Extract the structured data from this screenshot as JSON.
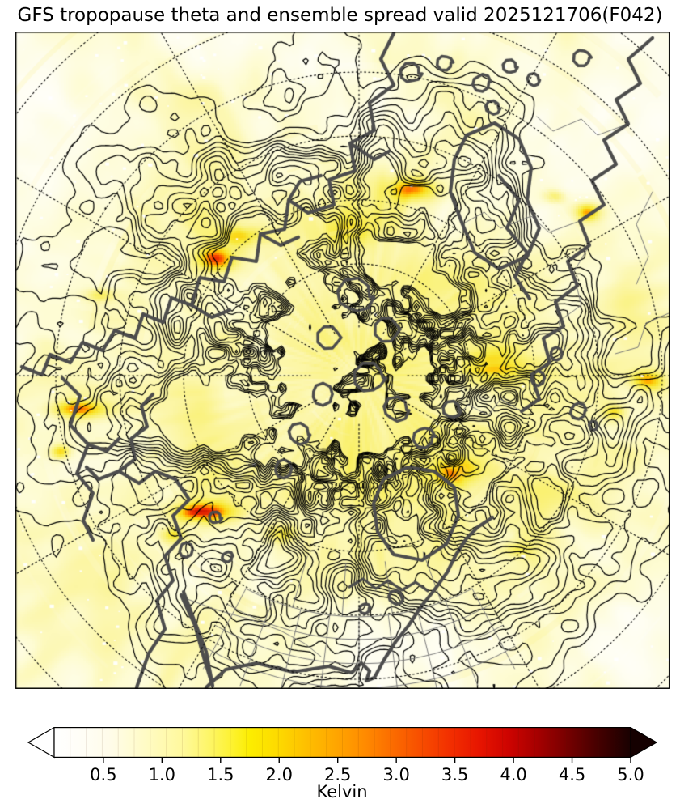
{
  "title": "GFS tropopause theta and ensemble spread valid 2025121706(F042)",
  "chart_data": {
    "type": "heatmap",
    "title": "GFS tropopause theta and ensemble spread valid 2025121706(F042)",
    "description": "North polar stereographic map of tropopause potential temperature ensemble spread (filled, white-yellow-orange-red-black) with black tropopause theta contour lines, dark gray coastlines, thin gray state and country borders, and dotted latitude/longitude graticule.",
    "projection": "north polar stereographic",
    "grid": "dotted latitude circles and meridians every 30 degrees",
    "colorbar": {
      "label": "Kelvin",
      "orientation": "horizontal",
      "extend": "both",
      "tick_labels": [
        "0.5",
        "1.0",
        "1.5",
        "2.0",
        "2.5",
        "3.0",
        "3.5",
        "4.0",
        "4.5",
        "5.0"
      ],
      "tick_values": [
        0.5,
        1.0,
        1.5,
        2.0,
        2.5,
        3.0,
        3.5,
        4.0,
        4.5,
        5.0
      ],
      "value_range": [
        0.08,
        5.0
      ],
      "left_arrow_color": "#ffffff",
      "right_arrow_color": "#150101",
      "gradient_stops": [
        [
          0.0,
          "#ffffff"
        ],
        [
          0.05,
          "#fffef6"
        ],
        [
          0.1,
          "#fffce8"
        ],
        [
          0.16,
          "#fffbc4"
        ],
        [
          0.22,
          "#fff99e"
        ],
        [
          0.27,
          "#fdf566"
        ],
        [
          0.31,
          "#fdf22e"
        ],
        [
          0.34,
          "#fced00"
        ],
        [
          0.39,
          "#fdd900"
        ],
        [
          0.44,
          "#febe00"
        ],
        [
          0.49,
          "#ffa500"
        ],
        [
          0.54,
          "#ff8a00"
        ],
        [
          0.59,
          "#fb6a00"
        ],
        [
          0.64,
          "#f74b00"
        ],
        [
          0.69,
          "#f22d00"
        ],
        [
          0.74,
          "#e61400"
        ],
        [
          0.79,
          "#cc0300"
        ],
        [
          0.84,
          "#a40000"
        ],
        [
          0.89,
          "#760000"
        ],
        [
          0.94,
          "#480000"
        ],
        [
          1.0,
          "#190101"
        ]
      ]
    },
    "map_colors": {
      "low_spread": "#ffffff",
      "background_spread": "#fcf6a4",
      "mid_spread": "#f8ea3e",
      "high_spread": "#ff7a00",
      "extreme_spread": "#b80000",
      "theta_contours": "#000000",
      "coastlines": "#4d4d4d",
      "thin_borders": "#787878",
      "graticule": "#000000"
    }
  }
}
